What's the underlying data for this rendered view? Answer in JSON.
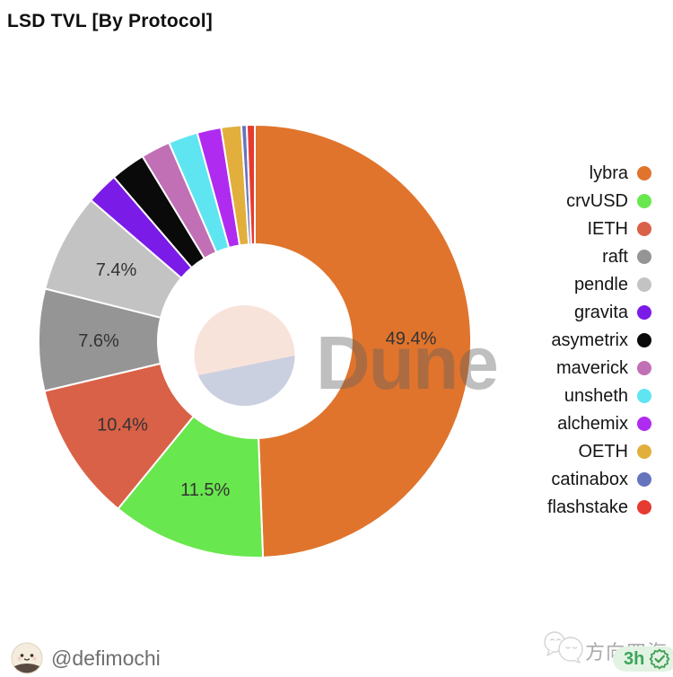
{
  "header": {
    "title": "LSD TVL [By Protocol]"
  },
  "chart_data": {
    "type": "pie",
    "subtype": "donut",
    "title": "LSD TVL [By Protocol]",
    "start_angle_deg": 0,
    "direction": "clockwise",
    "legend_position": "right",
    "label_format": "percent_one_decimal",
    "label_min_pct": 7,
    "slices": [
      {
        "label": "lybra",
        "value_pct": 49.4,
        "color": "#E0742D",
        "show_label": true
      },
      {
        "label": "crvUSD",
        "value_pct": 11.5,
        "color": "#69E74E",
        "show_label": true
      },
      {
        "label": "IETH",
        "value_pct": 10.4,
        "color": "#D96147",
        "show_label": true
      },
      {
        "label": "raft",
        "value_pct": 7.6,
        "color": "#959595",
        "show_label": true
      },
      {
        "label": "pendle",
        "value_pct": 7.4,
        "color": "#C3C3C3",
        "show_label": true
      },
      {
        "label": "gravita",
        "value_pct": 2.4,
        "color": "#7A1BE8",
        "show_label": false
      },
      {
        "label": "asymetrix",
        "value_pct": 2.6,
        "color": "#0A0A0A",
        "show_label": false
      },
      {
        "label": "maverick",
        "value_pct": 2.2,
        "color": "#C170B5",
        "show_label": false
      },
      {
        "label": "unsheth",
        "value_pct": 2.2,
        "color": "#5FE5F2",
        "show_label": false
      },
      {
        "label": "alchemix",
        "value_pct": 1.8,
        "color": "#B02BF0",
        "show_label": false
      },
      {
        "label": "OETH",
        "value_pct": 1.5,
        "color": "#E2AF3C",
        "show_label": false
      },
      {
        "label": "catinabox",
        "value_pct": 0.4,
        "color": "#6674BE",
        "show_label": false
      },
      {
        "label": "flashstake",
        "value_pct": 0.6,
        "color": "#E63B31",
        "show_label": false
      }
    ],
    "visible_slice_labels": [
      "49.4%",
      "11.5%",
      "10.4%",
      "7.6%",
      "7.4%"
    ]
  },
  "watermark": {
    "text": "Dune",
    "text_color": "#5f5f5f",
    "logo_top_color": "#F8E3DA",
    "logo_bottom_color": "#CBD0E1"
  },
  "footer": {
    "handle": "@defimochi",
    "channel": "方向四海",
    "badge_time": "3h"
  },
  "icons": {
    "badge_check": "✓"
  },
  "colors": {
    "label_text": "#333333",
    "badge_green": "#3ba558",
    "badge_bg": "#e2f3e4"
  }
}
